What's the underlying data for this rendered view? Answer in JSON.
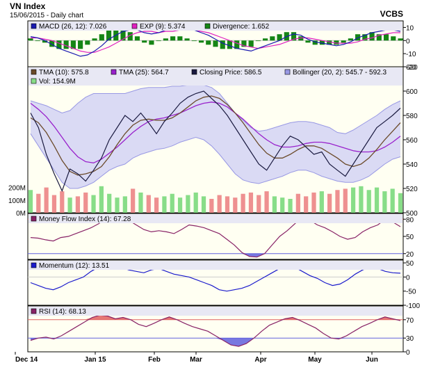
{
  "header": {
    "title": "VN Index",
    "subtitle": "15/06/2015 - Daily chart",
    "source": "VCBS"
  },
  "colors": {
    "panel_bg": "#fffff2",
    "legend_bg": "#e8e8f4",
    "band_fill": "#d6d6f4",
    "band_line": "#9898e4",
    "macd": "#1a1ab0",
    "signal": "#e020c0",
    "divergence": "#158515",
    "tma10": "#6b4a2a",
    "tma25": "#9922cc",
    "close": "#1a1a40",
    "vol_up": "#88dd88",
    "vol_down": "#ee9090",
    "mfi": "#882266",
    "momentum": "#1a1acc",
    "rsi": "#882266",
    "ref_red": "#e06060",
    "ref_blue": "#6060dd"
  },
  "x_axis": [
    "Dec 14",
    "Jan 15",
    "Feb",
    "Mar",
    "Apr",
    "May",
    "Jun"
  ],
  "chart_data": [
    {
      "type": "line",
      "name": "macd_panel",
      "legend": [
        {
          "label": "MACD (26, 12): 7.026",
          "color": "#1a1ab0"
        },
        {
          "label": "EXP (9): 5.374",
          "color": "#e020c0"
        },
        {
          "label": "Divergence: 1.652",
          "color": "#158515"
        }
      ],
      "ylim": [
        -20,
        15
      ],
      "ticks": [
        "10",
        "0",
        "-10",
        "-20"
      ],
      "tick_values": [
        10,
        0,
        -10,
        -20
      ],
      "macd": [
        3,
        2,
        0,
        -3,
        -6,
        -8,
        -10,
        -12,
        -11,
        -8,
        -4,
        1,
        4,
        7,
        8,
        8,
        6,
        5,
        6,
        8,
        9,
        10,
        9,
        8,
        6,
        4,
        1,
        -2,
        -4,
        -6,
        -7,
        -8,
        -6,
        -4,
        -2,
        0,
        3,
        5,
        4,
        1,
        -1,
        -2,
        -3,
        -4,
        -3,
        -1,
        2,
        4,
        6,
        7,
        8,
        8,
        7
      ],
      "signal": [
        2,
        2,
        1,
        0,
        -2,
        -4,
        -6,
        -8,
        -9,
        -9,
        -7,
        -5,
        -2,
        1,
        4,
        6,
        7,
        7,
        6,
        7,
        7,
        8,
        8,
        8,
        7,
        6,
        4,
        2,
        0,
        -2,
        -4,
        -5,
        -6,
        -5,
        -4,
        -3,
        -1,
        1,
        2,
        2,
        1,
        0,
        -1,
        -2,
        -2,
        -2,
        -1,
        1,
        2,
        4,
        5,
        6,
        6
      ]
    },
    {
      "type": "line",
      "name": "price_panel",
      "legend": [
        {
          "label": "TMA (10): 575.8",
          "color": "#6b4a2a"
        },
        {
          "label": "TMA (25): 564.7",
          "color": "#9922cc"
        },
        {
          "label": "Closing Price: 586.5",
          "color": "#1a1a40"
        },
        {
          "label": "Bollinger (20, 2): 545.7 - 592.3",
          "color": "#9898e4"
        },
        {
          "label": "Vol: 154.9M",
          "color": "#88dd88"
        }
      ],
      "ylim": [
        500,
        620
      ],
      "ticks": [
        "620",
        "600",
        "580",
        "560",
        "540",
        "520",
        "500"
      ],
      "tick_values": [
        620,
        600,
        580,
        560,
        540,
        520,
        500
      ],
      "vol_ticks": [
        "200M",
        "100M",
        "0M"
      ],
      "vol_tick_values": [
        200,
        100,
        0
      ],
      "vol_max": 330,
      "close": [
        582,
        570,
        548,
        532,
        518,
        536,
        532,
        526,
        535,
        545,
        560,
        570,
        580,
        575,
        582,
        574,
        565,
        575,
        582,
        590,
        595,
        598,
        600,
        594,
        588,
        580,
        570,
        560,
        550,
        540,
        535,
        545,
        555,
        563,
        560,
        554,
        548,
        550,
        540,
        535,
        530,
        540,
        550,
        560,
        570,
        575,
        580,
        586
      ],
      "tma10": [
        578,
        574,
        566,
        555,
        543,
        534,
        531,
        532,
        534,
        538,
        546,
        556,
        565,
        572,
        576,
        577,
        576,
        576,
        578,
        582,
        587,
        592,
        595,
        596,
        594,
        589,
        582,
        574,
        565,
        556,
        549,
        545,
        545,
        548,
        552,
        555,
        555,
        553,
        549,
        545,
        540,
        538,
        540,
        545,
        552,
        560,
        567,
        574
      ],
      "tma25": [
        590,
        585,
        579,
        571,
        562,
        553,
        546,
        542,
        541,
        544,
        549,
        554,
        560,
        566,
        571,
        575,
        577,
        578,
        580,
        582,
        585,
        588,
        590,
        591,
        590,
        587,
        582,
        577,
        571,
        565,
        560,
        556,
        554,
        554,
        555,
        557,
        558,
        558,
        557,
        555,
        553,
        551,
        550,
        550,
        551,
        554,
        558,
        563
      ],
      "boll_upper": [
        592,
        590,
        588,
        585,
        582,
        584,
        590,
        595,
        598,
        598,
        598,
        598,
        598,
        600,
        602,
        603,
        603,
        603,
        604,
        604,
        605,
        605,
        605,
        603,
        598,
        590,
        582,
        576,
        570,
        567,
        568,
        570,
        572,
        574,
        575,
        575,
        574,
        572,
        570,
        566,
        565,
        568,
        572,
        576,
        580,
        585,
        589,
        592
      ],
      "boll_lower": [
        565,
        555,
        545,
        535,
        525,
        520,
        520,
        522,
        525,
        530,
        535,
        538,
        540,
        545,
        548,
        550,
        552,
        553,
        555,
        558,
        560,
        562,
        560,
        555,
        548,
        540,
        532,
        527,
        525,
        524,
        526,
        528,
        530,
        533,
        535,
        535,
        533,
        530,
        528,
        526,
        525,
        525,
        527,
        530,
        535,
        540,
        544,
        546
      ],
      "volume": [
        180,
        150,
        200,
        140,
        170,
        120,
        130,
        160,
        140,
        210,
        150,
        120,
        130,
        190,
        160,
        140,
        120,
        130,
        150,
        120,
        140,
        160,
        130,
        110,
        140,
        130,
        120,
        150,
        160,
        140,
        170,
        130,
        120,
        110,
        150,
        130,
        160,
        170,
        150,
        180,
        190,
        200,
        210,
        180,
        200,
        170,
        190,
        155
      ],
      "volume_up": [
        1,
        0,
        0,
        0,
        0,
        1,
        0,
        0,
        1,
        1,
        1,
        1,
        1,
        0,
        1,
        0,
        0,
        1,
        1,
        1,
        1,
        1,
        1,
        0,
        0,
        0,
        0,
        0,
        0,
        0,
        0,
        1,
        1,
        1,
        0,
        0,
        0,
        1,
        0,
        0,
        0,
        1,
        1,
        1,
        1,
        1,
        1,
        1
      ]
    },
    {
      "type": "line",
      "name": "mfi_panel",
      "legend": [
        {
          "label": "Money Flow Index (14): 67.28",
          "color": "#882266"
        }
      ],
      "ylim": [
        10,
        90
      ],
      "ticks": [
        "80",
        "50",
        "20"
      ],
      "tick_values": [
        80,
        50,
        20
      ],
      "overbought": 80,
      "oversold": 20,
      "values": [
        48,
        47,
        44,
        42,
        48,
        50,
        55,
        60,
        65,
        72,
        80,
        85,
        82,
        78,
        70,
        62,
        58,
        60,
        58,
        55,
        62,
        70,
        68,
        65,
        60,
        55,
        45,
        35,
        22,
        15,
        14,
        20,
        35,
        50,
        60,
        72,
        84,
        78,
        70,
        65,
        58,
        50,
        45,
        48,
        58,
        65,
        70,
        80,
        75,
        67
      ]
    },
    {
      "type": "line",
      "name": "momentum_panel",
      "legend": [
        {
          "label": "Momentum (12): 13.51",
          "color": "#1a1acc"
        }
      ],
      "ylim": [
        -100,
        60
      ],
      "ticks": [
        "50",
        "0",
        "-50",
        "-100"
      ],
      "tick_values": [
        50,
        0,
        -50,
        -100
      ],
      "values": [
        -20,
        -30,
        -40,
        -45,
        -35,
        -20,
        -10,
        0,
        20,
        35,
        45,
        42,
        35,
        25,
        20,
        15,
        25,
        30,
        20,
        10,
        5,
        0,
        -10,
        -20,
        -30,
        -45,
        -50,
        -45,
        -40,
        -30,
        -15,
        0,
        15,
        30,
        40,
        35,
        20,
        5,
        -5,
        -20,
        -30,
        -25,
        -10,
        10,
        25,
        35,
        30,
        20,
        15,
        13.51
      ]
    },
    {
      "type": "line",
      "name": "rsi_panel",
      "legend": [
        {
          "label": "RSI (14): 68.13",
          "color": "#882266"
        }
      ],
      "ylim": [
        0,
        100
      ],
      "ticks": [
        "70",
        "30",
        "0"
      ],
      "tick_values": [
        70,
        30,
        0
      ],
      "overbought": 70,
      "oversold": 30,
      "values": [
        25,
        30,
        32,
        28,
        35,
        45,
        55,
        65,
        75,
        80,
        78,
        72,
        75,
        70,
        60,
        55,
        62,
        70,
        76,
        70,
        62,
        55,
        50,
        45,
        35,
        25,
        15,
        12,
        18,
        30,
        45,
        58,
        65,
        72,
        75,
        68,
        60,
        52,
        40,
        30,
        28,
        35,
        45,
        55,
        62,
        70,
        76,
        72,
        68.13
      ]
    }
  ]
}
